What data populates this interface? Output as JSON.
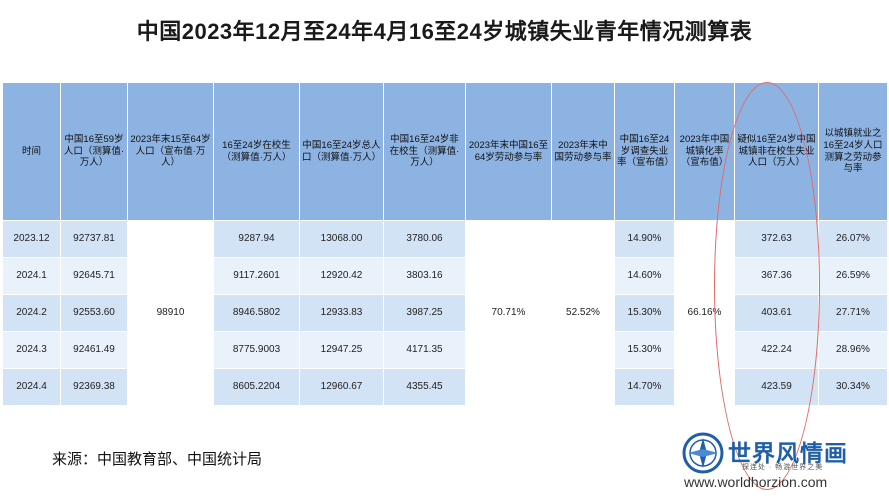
{
  "title": "中国2023年12月至24年4月16至24岁城镇失业青年情况测算表",
  "table": {
    "headers": [
      "时间",
      "中国16至59岁人口（测算值·万人）",
      "2023年末15至64岁人口（宣布值·万人）",
      "16至24岁在校生（测算值·万人）",
      "中国16至24岁总人口（测算值·万人）",
      "中国16至24岁非在校生（测算值·万人）",
      "2023年末中国16至64岁劳动参与率",
      "2023年末中国劳动参与率",
      "中国16至24岁调查失业率（宣布值）",
      "2023年中国城镇化率（宣布值）",
      "疑似16至24岁中国城镇非在校生失业人口（万人）",
      "以城镇就业之16至24岁人口测算之劳动参与率"
    ],
    "rows": [
      [
        "2023.12",
        "92737.81",
        "9287.94",
        "13068.00",
        "3780.06",
        "14.90%",
        "372.63",
        "26.07%"
      ],
      [
        "2024.1",
        "92645.71",
        "9117.2601",
        "12920.42",
        "3803.16",
        "14.60%",
        "367.36",
        "26.59%"
      ],
      [
        "2024.2",
        "92553.60",
        "8946.5802",
        "12933.83",
        "3987.25",
        "15.30%",
        "403.61",
        "27.71%"
      ],
      [
        "2024.3",
        "92461.49",
        "8775.9003",
        "12947.25",
        "4171.35",
        "15.30%",
        "422.24",
        "28.96%"
      ],
      [
        "2024.4",
        "92369.38",
        "8605.2204",
        "12960.67",
        "4355.45",
        "14.70%",
        "423.59",
        "30.34%"
      ]
    ],
    "merged": {
      "population_15_64": "98910",
      "labor_participation_16_64": "70.71%",
      "labor_participation_total": "52.52%",
      "urbanization_rate": "66.16%"
    }
  },
  "source": "来源：中国教育部、中国统计局",
  "logo": {
    "name": "世界风情画",
    "slogan": "探连处 · 畅游世界之美",
    "url": "www.worldhorzion.com"
  },
  "colors": {
    "header_bg": "#8db3e2",
    "row_odd": "#d3e3f6",
    "row_even": "#e9f1fb",
    "highlight_ellipse": "#e06a6a",
    "logo_blue": "#1f5fa8"
  }
}
